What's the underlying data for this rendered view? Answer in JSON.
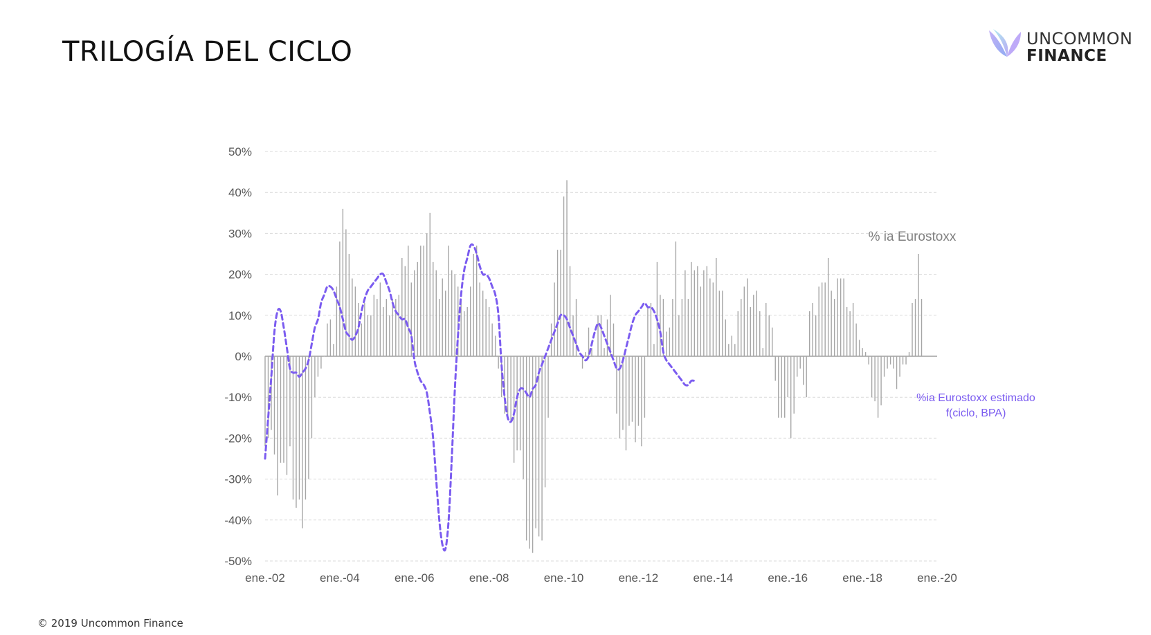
{
  "title": "TRILOGÍA DEL CICLO",
  "logo": {
    "line1": "UNCOMMON",
    "line2": "FINANCE",
    "icon": "butterfly-logo-icon"
  },
  "footer": {
    "copyright": "© 2019 Uncommon Finance"
  },
  "colors": {
    "bars": "#a6a6a6",
    "estimated": "#7b5cf0",
    "grid": "#d9d9d9",
    "axis_text": "#595959"
  },
  "chart_data": {
    "type": "bar+line",
    "y_ticks": [
      "50%",
      "40%",
      "30%",
      "20%",
      "10%",
      "0%",
      "-10%",
      "-20%",
      "-30%",
      "-40%",
      "-50%"
    ],
    "x_ticks": [
      "ene.-02",
      "ene.-04",
      "ene.-06",
      "ene.-08",
      "ene.-10",
      "ene.-12",
      "ene.-14",
      "ene.-16",
      "ene.-18",
      "ene.-20"
    ],
    "ylim": [
      -50,
      50
    ],
    "xlim": [
      2002.0,
      2020.0
    ],
    "grid": true,
    "series": [
      {
        "name": "% ia Eurostoxx",
        "type": "bar",
        "x_start": 2002.0,
        "step_months": 1,
        "values": [
          -22,
          -20,
          -18,
          -24,
          -34,
          -26,
          -26,
          -29,
          -22,
          -35,
          -37,
          -35,
          -42,
          -35,
          -30,
          -20,
          -10,
          -5,
          -3,
          0,
          8,
          9,
          3,
          17,
          28,
          36,
          31,
          25,
          19,
          17,
          13,
          8,
          13,
          10,
          10,
          15,
          14,
          18,
          12,
          14,
          10,
          14,
          14,
          15,
          24,
          22,
          27,
          18,
          21,
          23,
          27,
          27,
          30,
          35,
          23,
          21,
          14,
          19,
          16,
          27,
          21,
          20,
          17,
          14,
          11,
          12,
          17,
          25,
          27,
          18,
          16,
          14,
          12,
          8,
          5,
          -3,
          -10,
          -14,
          -15,
          -16,
          -26,
          -23,
          -23,
          -30,
          -45,
          -47,
          -48,
          -42,
          -44,
          -45,
          -32,
          -15,
          8,
          18,
          26,
          26,
          39,
          43,
          22,
          10,
          14,
          0,
          -3,
          1,
          7,
          2,
          0,
          10,
          10,
          2,
          9,
          15,
          8,
          -14,
          -20,
          -18,
          -23,
          -17,
          -16,
          -21,
          -17,
          -22,
          -15,
          12,
          13,
          3,
          23,
          15,
          14,
          6,
          7,
          14,
          28,
          10,
          14,
          21,
          14,
          23,
          21,
          22,
          17,
          21,
          22,
          19,
          18,
          24,
          16,
          16,
          9,
          3,
          5,
          3,
          11,
          14,
          17,
          19,
          12,
          15,
          16,
          11,
          2,
          13,
          10,
          7,
          -6,
          -15,
          -15,
          -15,
          -10,
          -20,
          -14,
          -5,
          -3,
          -7,
          -10,
          11,
          13,
          10,
          17,
          18,
          18,
          24,
          16,
          14,
          19,
          19,
          19,
          12,
          11,
          13,
          8,
          4,
          2,
          1,
          -2,
          -10,
          -11,
          -15,
          -12,
          -5,
          -3,
          -2,
          -3,
          -8,
          -5,
          -2,
          -2,
          1,
          13,
          14,
          25,
          14
        ]
      },
      {
        "name": "%ia Eurostoxx estimado f(ciclo, BPA)",
        "type": "line",
        "style": "dashed",
        "x_start": 2002.0,
        "step_months": 1,
        "values": [
          -25,
          -15,
          -5,
          6,
          11,
          11,
          7,
          2,
          -3,
          -4,
          -4,
          -5,
          -4,
          -3,
          -1,
          3,
          7,
          9,
          13,
          15,
          17,
          17,
          16,
          14,
          12,
          9,
          6,
          5,
          4,
          5,
          7,
          11,
          14,
          16,
          17,
          18,
          19,
          20,
          20,
          18,
          16,
          13,
          11,
          10,
          9,
          9,
          7,
          5,
          -1,
          -4,
          -6,
          -7,
          -9,
          -14,
          -20,
          -30,
          -40,
          -46,
          -47,
          -40,
          -25,
          -8,
          5,
          15,
          21,
          24,
          27,
          27,
          25,
          22,
          20,
          20,
          19,
          17,
          15,
          10,
          -2,
          -10,
          -15,
          -16,
          -14,
          -10,
          -8,
          -8,
          -9,
          -10,
          -8,
          -7,
          -4,
          -2,
          0,
          2,
          4,
          6,
          8,
          10,
          10,
          9,
          7,
          5,
          3,
          1,
          0,
          -1,
          0,
          3,
          6,
          8,
          7,
          5,
          3,
          1,
          -1,
          -3,
          -3,
          -1,
          2,
          5,
          8,
          10,
          11,
          12,
          13,
          12,
          12,
          11,
          9,
          6,
          1,
          -1,
          -2,
          -3,
          -4,
          -5,
          -6,
          -7,
          -7,
          -6,
          -6
        ]
      }
    ],
    "annotations": [
      "% ia Eurostoxx",
      "%ia Eurostoxx estimado",
      "f(ciclo, BPA)"
    ]
  }
}
